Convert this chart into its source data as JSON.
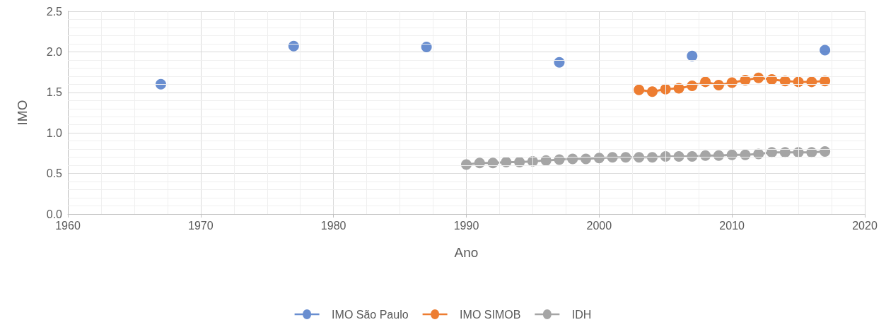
{
  "chart_data": {
    "type": "scatter",
    "xlabel": "Ano",
    "ylabel": "IMO",
    "xlim": [
      1960,
      2020
    ],
    "xticks": [
      1960,
      1970,
      1980,
      1990,
      2000,
      2010,
      2020
    ],
    "ylim": [
      0,
      2.5
    ],
    "yticks": [
      {
        "value": 0,
        "label": "0.0"
      },
      {
        "value": 0.5,
        "label": "0.5"
      },
      {
        "value": 1,
        "label": "1.0"
      },
      {
        "value": 1.5,
        "label": "1.5"
      },
      {
        "value": 2,
        "label": "2.0"
      },
      {
        "value": 2.5,
        "label": "2.5"
      }
    ],
    "grid": true,
    "legend": "bottom",
    "marker": "circle",
    "series": [
      {
        "name": "IMO São Paulo",
        "color": "#4472c4",
        "x": [
          1967,
          1977,
          1987,
          1997,
          2007,
          2017
        ],
        "values": [
          1.6,
          2.07,
          2.06,
          1.87,
          1.95,
          2.02
        ]
      },
      {
        "name": "IMO SIMOB",
        "type": "line",
        "color": "#ed7d31",
        "x": [
          2003,
          2004,
          2005,
          2006,
          2007,
          2008,
          2009,
          2010,
          2011,
          2012,
          2013,
          2014,
          2015,
          2016,
          2017
        ],
        "values": [
          1.53,
          1.51,
          1.54,
          1.55,
          1.58,
          1.63,
          1.59,
          1.62,
          1.65,
          1.68,
          1.66,
          1.64,
          1.63,
          1.63,
          1.64
        ]
      },
      {
        "name": "IDH",
        "type": "line",
        "color": "#a5a5a5",
        "x": [
          1990,
          1991,
          1992,
          1993,
          1994,
          1995,
          1996,
          1997,
          1998,
          1999,
          2000,
          2001,
          2002,
          2003,
          2004,
          2005,
          2006,
          2007,
          2008,
          2009,
          2010,
          2011,
          2012,
          2013,
          2014,
          2015,
          2016,
          2017
        ],
        "values": [
          0.61,
          0.63,
          0.63,
          0.64,
          0.64,
          0.65,
          0.66,
          0.67,
          0.68,
          0.68,
          0.69,
          0.7,
          0.7,
          0.7,
          0.7,
          0.71,
          0.71,
          0.71,
          0.72,
          0.72,
          0.73,
          0.73,
          0.74,
          0.76,
          0.76,
          0.76,
          0.76,
          0.77
        ]
      }
    ]
  }
}
